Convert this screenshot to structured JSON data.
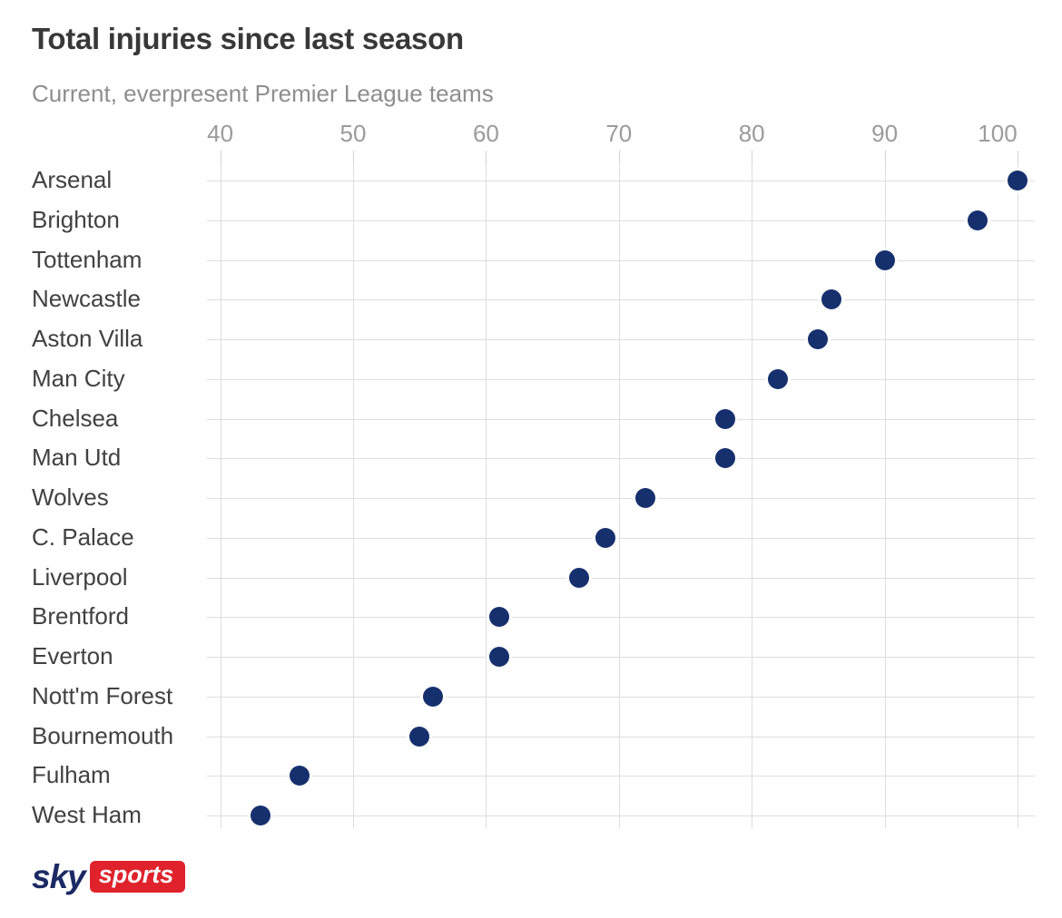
{
  "header": {
    "title": "Total injuries since last season",
    "subtitle": "Current, everpresent Premier League teams"
  },
  "chart_data": {
    "type": "scatter",
    "variant": "horizontal-dot-plot",
    "title": "Total injuries since last season",
    "subtitle": "Current, everpresent Premier League teams",
    "categories": [
      "Arsenal",
      "Brighton",
      "Tottenham",
      "Newcastle",
      "Aston Villa",
      "Man City",
      "Chelsea",
      "Man Utd",
      "Wolves",
      "C. Palace",
      "Liverpool",
      "Brentford",
      "Everton",
      "Nott'm Forest",
      "Bournemouth",
      "Fulham",
      "West Ham"
    ],
    "values": [
      100,
      97,
      90,
      86,
      85,
      82,
      78,
      78,
      72,
      69,
      67,
      61,
      61,
      56,
      55,
      46,
      43
    ],
    "x_ticks": [
      40,
      50,
      60,
      70,
      80,
      90,
      100
    ],
    "xlim": [
      39,
      101.3
    ],
    "xlabel": "",
    "ylabel": "",
    "grid": true,
    "legend": "none",
    "dot_color": "#16306e",
    "grid_color": "#dedede",
    "tick_color": "#d2d2d2",
    "axis_label_color": "#9b9b9b",
    "category_label_color": "#414141"
  },
  "footer": {
    "logo": {
      "sky_text": "sky",
      "sports_text": "sports",
      "sky_color": "#1b2a63",
      "sports_bg": "#e0222c",
      "sports_text_color": "#ffffff"
    }
  }
}
